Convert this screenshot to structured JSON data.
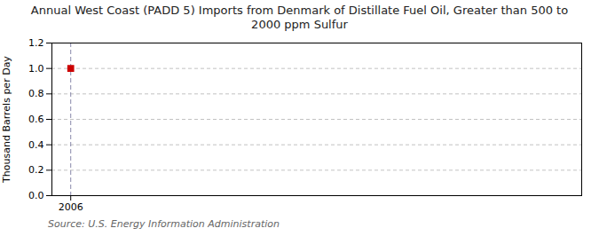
{
  "chart_data": {
    "type": "scatter",
    "title": "Annual West Coast (PADD 5) Imports from Denmark of Distillate Fuel Oil, Greater than 500 to\n2000 ppm Sulfur",
    "ylabel": "Thousand Barrels per Day",
    "source": "Source: U.S. Energy Information Administration",
    "x": [
      2006
    ],
    "values": [
      1.0
    ],
    "color": "#cc0000",
    "marker": "square",
    "xlim": [
      2005.3,
      2025
    ],
    "xticks": [
      2006
    ],
    "ylim": [
      0.0,
      1.2
    ],
    "yticks": [
      {
        "value": 0.0,
        "label": "0.0"
      },
      0.2,
      0.4,
      0.6,
      0.8,
      {
        "value": 1.0,
        "label": "1.0"
      },
      1.2
    ],
    "grid": true
  }
}
